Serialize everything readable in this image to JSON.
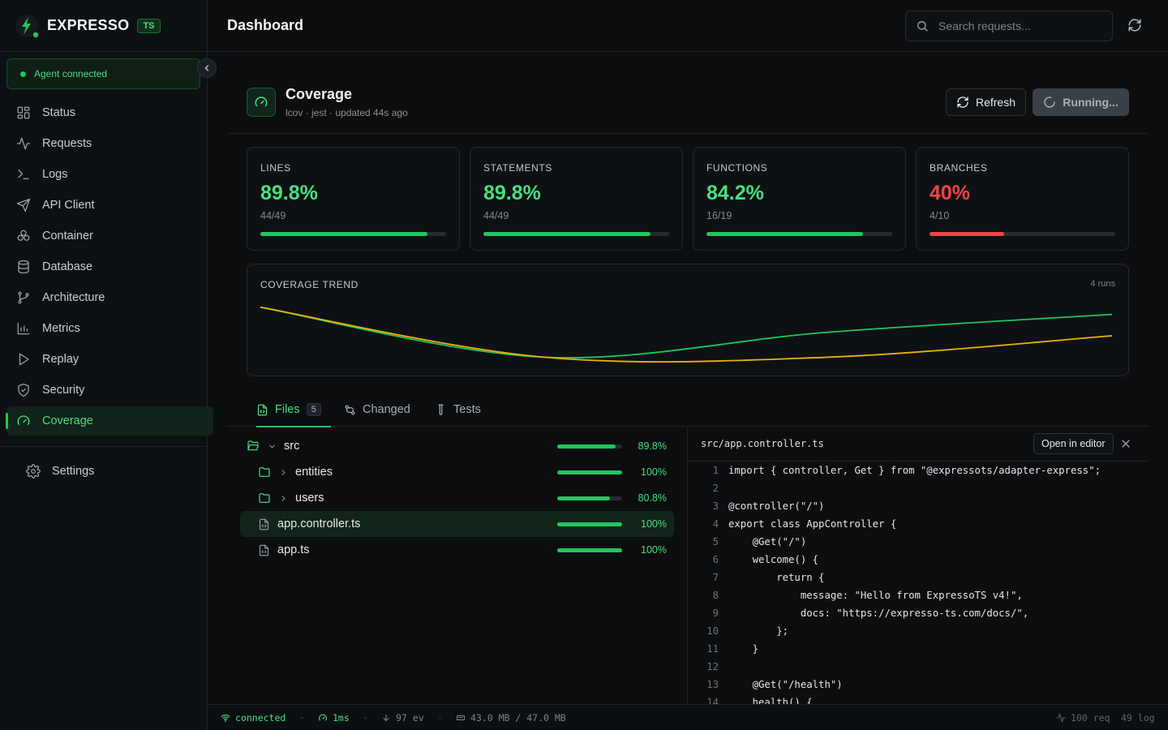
{
  "app": {
    "name": "EXPRESSO",
    "badge": "TS"
  },
  "agent": {
    "status": "Agent connected"
  },
  "sidebar": {
    "items": [
      {
        "label": "Status",
        "icon": "grid-icon"
      },
      {
        "label": "Requests",
        "icon": "activity-icon"
      },
      {
        "label": "Logs",
        "icon": "terminal-icon"
      },
      {
        "label": "API Client",
        "icon": "send-icon"
      },
      {
        "label": "Container",
        "icon": "boxes-icon"
      },
      {
        "label": "Database",
        "icon": "database-icon"
      },
      {
        "label": "Architecture",
        "icon": "git-branch-icon"
      },
      {
        "label": "Metrics",
        "icon": "bar-chart-icon"
      },
      {
        "label": "Replay",
        "icon": "play-icon"
      },
      {
        "label": "Security",
        "icon": "shield-icon"
      },
      {
        "label": "Coverage",
        "icon": "gauge-icon",
        "active": true
      }
    ],
    "settings": "Settings"
  },
  "header": {
    "title": "Dashboard",
    "search_placeholder": "Search requests..."
  },
  "page": {
    "title": "Coverage",
    "subtitle": "lcov · jest · updated 44s ago",
    "refresh_label": "Refresh",
    "running_label": "Running..."
  },
  "stats": [
    {
      "label": "LINES",
      "value": "89.8%",
      "fraction": "44/49",
      "pct": 0.898,
      "color": "#22c55e",
      "value_color": "#4ade80"
    },
    {
      "label": "STATEMENTS",
      "value": "89.8%",
      "fraction": "44/49",
      "pct": 0.898,
      "color": "#22c55e",
      "value_color": "#4ade80"
    },
    {
      "label": "FUNCTIONS",
      "value": "84.2%",
      "fraction": "16/19",
      "pct": 0.842,
      "color": "#22c55e",
      "value_color": "#4ade80"
    },
    {
      "label": "BRANCHES",
      "value": "40%",
      "fraction": "4/10",
      "pct": 0.4,
      "color": "#ef4444",
      "value_color": "#f04444"
    }
  ],
  "trend": {
    "label": "COVERAGE TREND",
    "runs": "4 runs"
  },
  "chart_data": {
    "type": "line",
    "title": "COVERAGE TREND",
    "x": [
      1,
      2,
      3,
      4
    ],
    "series": [
      {
        "color": "#22c55e",
        "values": [
          96,
          68,
          82,
          92
        ]
      },
      {
        "color": "#eab308",
        "values": [
          96,
          68,
          68,
          80
        ]
      }
    ],
    "ylim": [
      65,
      100
    ],
    "grid": false
  },
  "tabs": [
    {
      "label": "Files",
      "count": "5",
      "active": true
    },
    {
      "label": "Changed"
    },
    {
      "label": "Tests"
    }
  ],
  "files": [
    {
      "name": "src",
      "type": "folder-open",
      "depth": 0,
      "pct_label": "89.8%",
      "pct": 0.898
    },
    {
      "name": "entities",
      "type": "folder",
      "depth": 1,
      "pct_label": "100%",
      "pct": 1.0
    },
    {
      "name": "users",
      "type": "folder",
      "depth": 1,
      "pct_label": "80.8%",
      "pct": 0.808
    },
    {
      "name": "app.controller.ts",
      "type": "file",
      "depth": 1,
      "pct_label": "100%",
      "pct": 1.0,
      "selected": true
    },
    {
      "name": "app.ts",
      "type": "file",
      "depth": 1,
      "pct_label": "100%",
      "pct": 1.0
    }
  ],
  "code": {
    "path": "src/app.controller.ts",
    "open_label": "Open in editor",
    "lines": [
      "import { controller, Get } from \"@expressots/adapter-express\";",
      "",
      "@controller(\"/\")",
      "export class AppController {",
      "    @Get(\"/\")",
      "    welcome() {",
      "        return {",
      "            message: \"Hello from ExpressoTS v4!\",",
      "            docs: \"https://expresso-ts.com/docs/\",",
      "        };",
      "    }",
      "",
      "    @Get(\"/health\")",
      "    health() {"
    ]
  },
  "statusbar": {
    "connection": "connected",
    "latency": "1ms",
    "events": "97 ev",
    "memory": "43.0 MB / 47.0 MB",
    "requests": "100 req",
    "logs": "49 log"
  }
}
